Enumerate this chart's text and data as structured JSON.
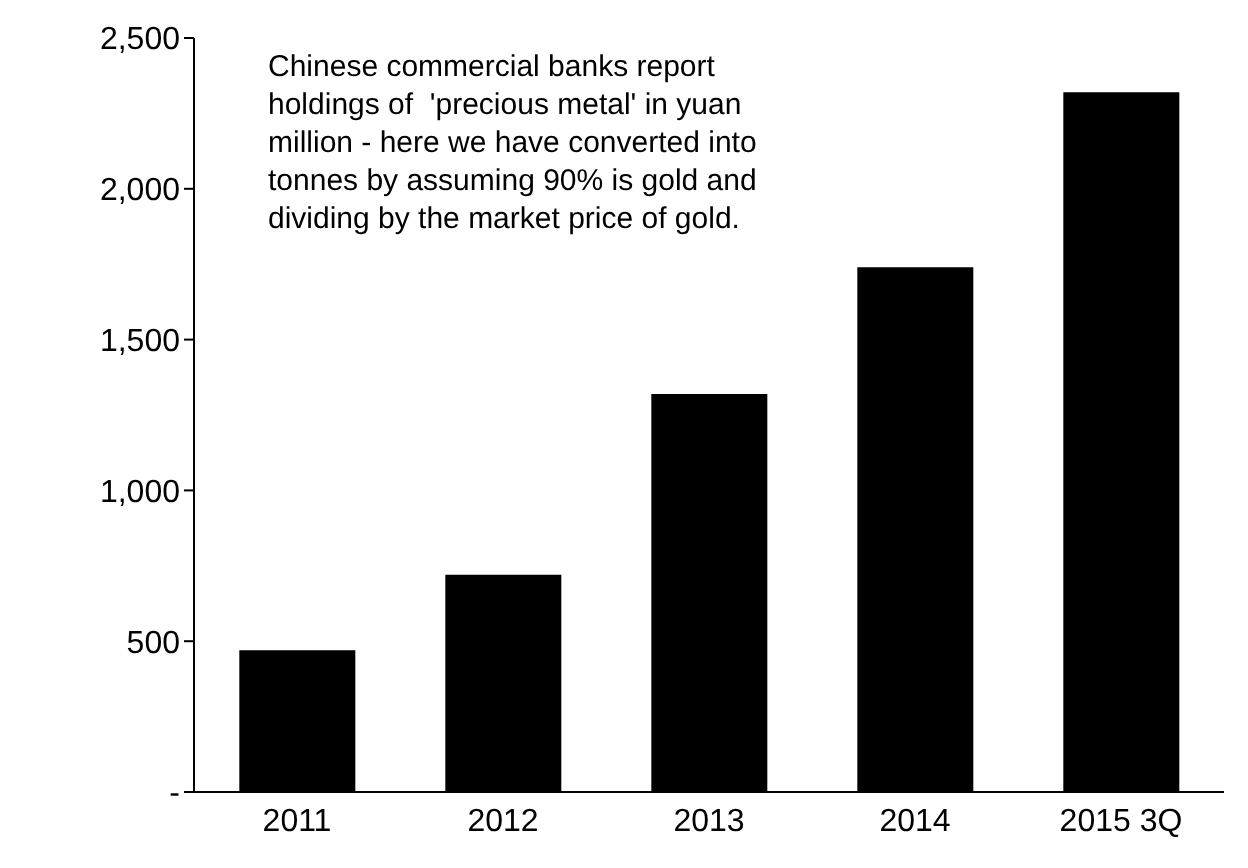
{
  "chart_data": {
    "type": "bar",
    "categories": [
      "2011",
      "2012",
      "2013",
      "2014",
      "2015 3Q"
    ],
    "values": [
      470,
      720,
      1320,
      1740,
      2320
    ],
    "color": "#000000",
    "ylim": [
      0,
      2500
    ],
    "yticks": [
      {
        "value": 0,
        "label": "-"
      },
      {
        "value": 500,
        "label": "500"
      },
      {
        "value": 1000,
        "label": "1,000"
      },
      {
        "value": 1500,
        "label": "1,500"
      },
      {
        "value": 2000,
        "label": "2,000"
      },
      {
        "value": 2500,
        "label": "2,500"
      }
    ],
    "grid": false,
    "legend": false,
    "annotations": [
      "Chinese commercial banks report holdings of  'precious metal' in yuan million - here we have converted into tonnes by assuming 90% is gold and dividing by the market price of gold."
    ]
  }
}
